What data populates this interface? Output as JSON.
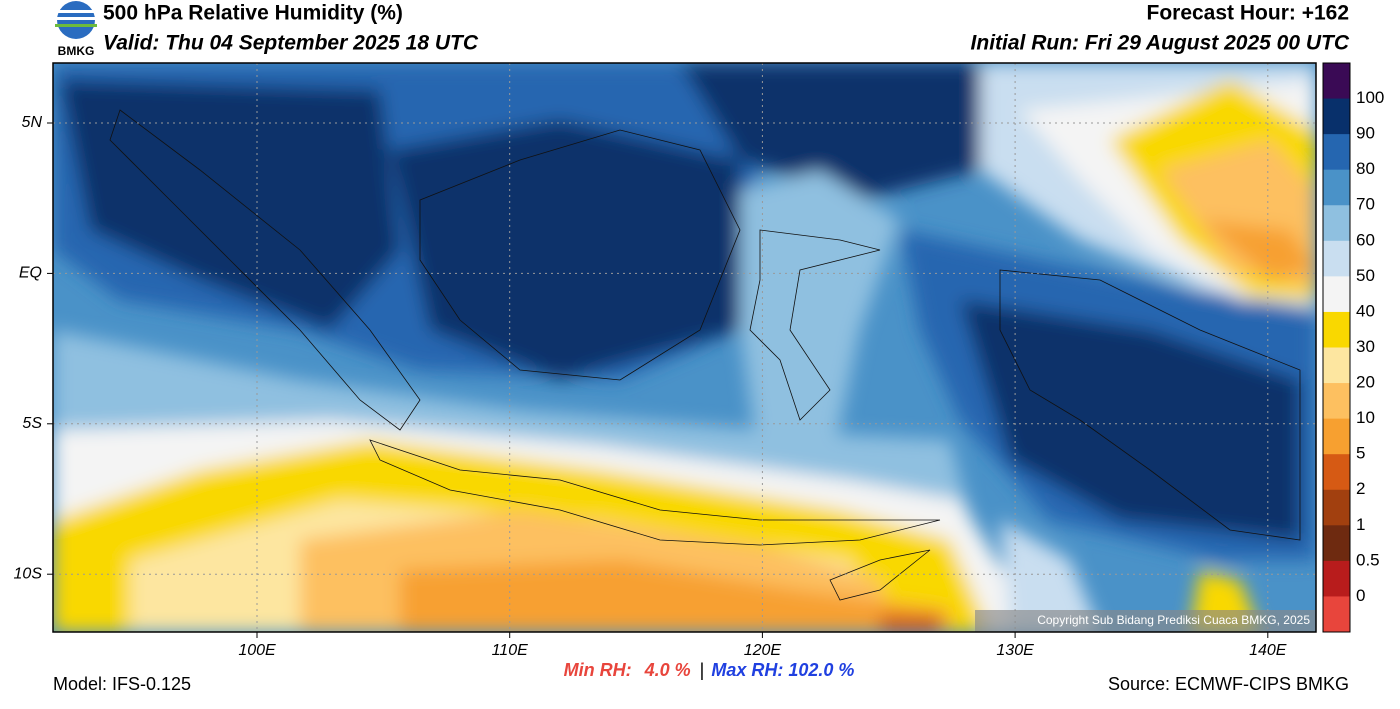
{
  "header": {
    "title": "500 hPa Relative Humidity (%)",
    "valid": "Valid: Thu 04 September 2025 18 UTC",
    "forecast_hour": "Forecast Hour: +162",
    "initial_run": "Initial Run: Fri 29 August 2025 00 UTC",
    "logo_text": "BMKG"
  },
  "map": {
    "x_labels": [
      "100E",
      "110E",
      "120E",
      "130E",
      "140E"
    ],
    "y_labels": [
      "5N",
      "EQ",
      "5S",
      "10S"
    ],
    "copyright": "Copyright Sub Bidang Prediksi Cuaca BMKG, 2025"
  },
  "colorbar": {
    "labels": [
      "100",
      "90",
      "80",
      "70",
      "60",
      "50",
      "40",
      "30",
      "20",
      "10",
      "5",
      "2",
      "1",
      "0.5",
      "0"
    ],
    "colors": [
      "#3a0a55",
      "#08306b",
      "#2566b0",
      "#4a92c8",
      "#8fc0e0",
      "#c9def0",
      "#f4f4f4",
      "#f9d800",
      "#fde6a0",
      "#fdc060",
      "#f7a030",
      "#d65a14",
      "#a2400f",
      "#6e2a10",
      "#b81c1c",
      "#e8453c"
    ]
  },
  "footer": {
    "model": "Model: IFS-0.125",
    "min_label": "Min RH:",
    "min_value": "4.0 %",
    "separator": "|",
    "max_label": "Max RH:",
    "max_value": "102.0 %",
    "source": "Source: ECMWF-CIPS BMKG"
  }
}
